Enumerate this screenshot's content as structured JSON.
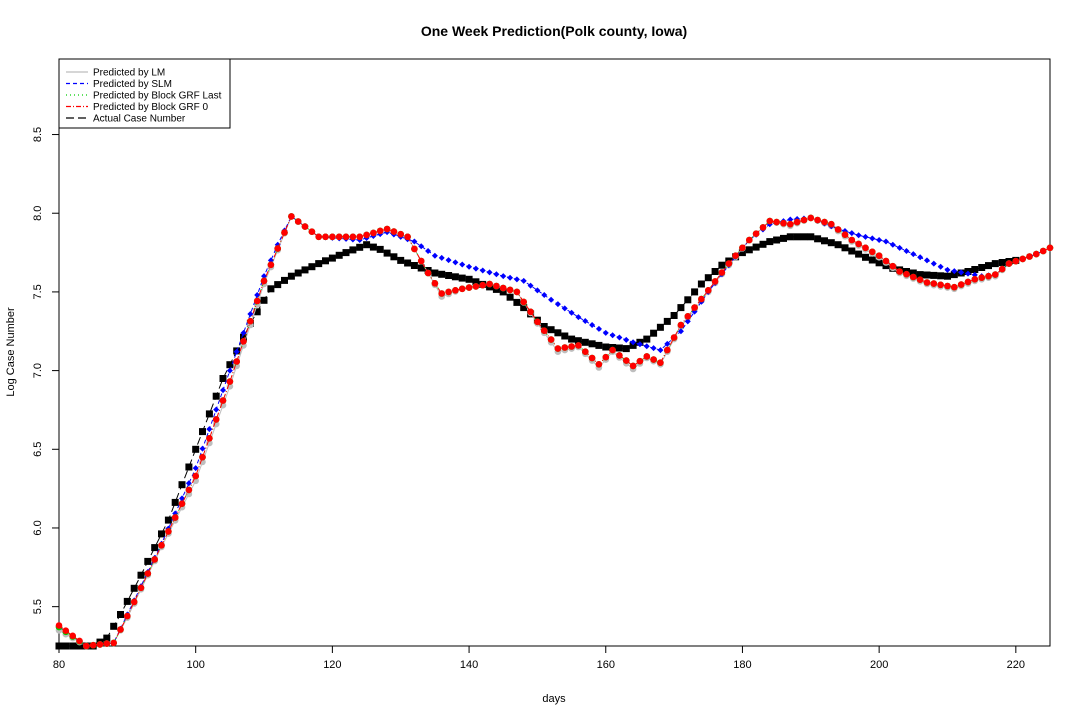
{
  "chart_data": {
    "type": "line",
    "title": "One Week Prediction(Polk county, Iowa)",
    "xlabel": "days",
    "ylabel": "Log Case Number",
    "xlim": [
      80,
      225
    ],
    "ylim": [
      5.25,
      8.98
    ],
    "xticks": [
      80,
      100,
      120,
      140,
      160,
      180,
      200,
      220
    ],
    "yticks": [
      5.5,
      6.0,
      6.5,
      7.0,
      7.5,
      8.0,
      8.5
    ],
    "x_range": [
      80,
      225
    ],
    "legend_position": "top-left",
    "grid": false,
    "series": [
      {
        "name": "Predicted by LM",
        "color": "#bebebe",
        "line": "solid",
        "marker": "circle",
        "keypoints": [
          [
            80,
            5.35
          ],
          [
            84,
            5.25
          ],
          [
            88,
            5.27
          ],
          [
            90,
            5.43
          ],
          [
            95,
            5.88
          ],
          [
            100,
            6.3
          ],
          [
            105,
            6.9
          ],
          [
            110,
            7.55
          ],
          [
            114,
            7.98
          ],
          [
            118,
            7.85
          ],
          [
            124,
            7.85
          ],
          [
            128,
            7.9
          ],
          [
            131,
            7.85
          ],
          [
            134,
            7.62
          ],
          [
            136,
            7.47
          ],
          [
            139,
            7.52
          ],
          [
            143,
            7.55
          ],
          [
            147,
            7.5
          ],
          [
            150,
            7.3
          ],
          [
            153,
            7.12
          ],
          [
            156,
            7.15
          ],
          [
            159,
            7.02
          ],
          [
            161,
            7.12
          ],
          [
            164,
            7.01
          ],
          [
            166,
            7.08
          ],
          [
            168,
            7.04
          ],
          [
            171,
            7.28
          ],
          [
            175,
            7.5
          ],
          [
            178,
            7.67
          ],
          [
            181,
            7.83
          ],
          [
            184,
            7.95
          ],
          [
            187,
            7.92
          ],
          [
            190,
            7.97
          ],
          [
            193,
            7.92
          ],
          [
            196,
            7.82
          ],
          [
            200,
            7.72
          ],
          [
            203,
            7.62
          ],
          [
            207,
            7.55
          ],
          [
            211,
            7.52
          ],
          [
            214,
            7.57
          ],
          [
            217,
            7.6
          ],
          [
            219,
            7.68
          ],
          [
            223,
            7.74
          ],
          [
            225,
            7.78
          ]
        ]
      },
      {
        "name": "Predicted by SLM",
        "color": "#0000ff",
        "line": "dashed",
        "marker": "diamond",
        "keypoints": [
          [
            80,
            5.37
          ],
          [
            84,
            5.25
          ],
          [
            88,
            5.27
          ],
          [
            90,
            5.45
          ],
          [
            95,
            5.9
          ],
          [
            100,
            6.38
          ],
          [
            105,
            7.0
          ],
          [
            110,
            7.6
          ],
          [
            112,
            7.8
          ],
          [
            114,
            7.98
          ],
          [
            118,
            7.85
          ],
          [
            124,
            7.83
          ],
          [
            128,
            7.88
          ],
          [
            132,
            7.82
          ],
          [
            135,
            7.73
          ],
          [
            140,
            7.66
          ],
          [
            145,
            7.6
          ],
          [
            148,
            7.57
          ],
          [
            152,
            7.45
          ],
          [
            156,
            7.34
          ],
          [
            160,
            7.24
          ],
          [
            164,
            7.18
          ],
          [
            168,
            7.13
          ],
          [
            171,
            7.25
          ],
          [
            175,
            7.5
          ],
          [
            178,
            7.67
          ],
          [
            181,
            7.83
          ],
          [
            184,
            7.93
          ],
          [
            187,
            7.96
          ],
          [
            190,
            7.97
          ],
          [
            194,
            7.9
          ],
          [
            197,
            7.86
          ],
          [
            201,
            7.82
          ],
          [
            205,
            7.74
          ],
          [
            210,
            7.64
          ],
          [
            215,
            7.6
          ],
          [
            217,
            7.61
          ],
          [
            219,
            7.68
          ],
          [
            223,
            7.74
          ],
          [
            225,
            7.78
          ]
        ]
      },
      {
        "name": "Predicted by Block GRF Last",
        "color": "#00cd00",
        "line": "dotted",
        "marker": "circle",
        "keypoints": [
          [
            80,
            5.37
          ],
          [
            84,
            5.25
          ],
          [
            88,
            5.27
          ],
          [
            90,
            5.44
          ],
          [
            95,
            5.89
          ],
          [
            100,
            6.33
          ],
          [
            105,
            6.93
          ],
          [
            110,
            7.57
          ],
          [
            114,
            7.98
          ],
          [
            118,
            7.85
          ],
          [
            124,
            7.85
          ],
          [
            128,
            7.9
          ],
          [
            131,
            7.85
          ],
          [
            134,
            7.62
          ],
          [
            136,
            7.49
          ],
          [
            139,
            7.52
          ],
          [
            143,
            7.55
          ],
          [
            147,
            7.5
          ],
          [
            150,
            7.31
          ],
          [
            153,
            7.14
          ],
          [
            156,
            7.16
          ],
          [
            159,
            7.04
          ],
          [
            161,
            7.13
          ],
          [
            164,
            7.03
          ],
          [
            166,
            7.09
          ],
          [
            168,
            7.05
          ],
          [
            171,
            7.29
          ],
          [
            175,
            7.51
          ],
          [
            178,
            7.68
          ],
          [
            181,
            7.83
          ],
          [
            184,
            7.95
          ],
          [
            187,
            7.93
          ],
          [
            190,
            7.97
          ],
          [
            193,
            7.93
          ],
          [
            196,
            7.83
          ],
          [
            200,
            7.73
          ],
          [
            203,
            7.63
          ],
          [
            207,
            7.56
          ],
          [
            211,
            7.53
          ],
          [
            214,
            7.58
          ],
          [
            217,
            7.61
          ],
          [
            219,
            7.68
          ],
          [
            223,
            7.74
          ],
          [
            225,
            7.78
          ]
        ]
      },
      {
        "name": "Predicted by Block GRF 0",
        "color": "#ff0000",
        "line": "dashdot",
        "marker": "circle",
        "keypoints": [
          [
            80,
            5.38
          ],
          [
            84,
            5.25
          ],
          [
            88,
            5.27
          ],
          [
            90,
            5.44
          ],
          [
            95,
            5.89
          ],
          [
            100,
            6.33
          ],
          [
            105,
            6.93
          ],
          [
            110,
            7.57
          ],
          [
            114,
            7.98
          ],
          [
            118,
            7.85
          ],
          [
            124,
            7.85
          ],
          [
            128,
            7.9
          ],
          [
            131,
            7.85
          ],
          [
            134,
            7.62
          ],
          [
            136,
            7.49
          ],
          [
            139,
            7.52
          ],
          [
            143,
            7.55
          ],
          [
            147,
            7.5
          ],
          [
            150,
            7.31
          ],
          [
            153,
            7.14
          ],
          [
            156,
            7.16
          ],
          [
            159,
            7.04
          ],
          [
            161,
            7.13
          ],
          [
            164,
            7.03
          ],
          [
            166,
            7.09
          ],
          [
            168,
            7.05
          ],
          [
            171,
            7.29
          ],
          [
            175,
            7.51
          ],
          [
            178,
            7.68
          ],
          [
            181,
            7.83
          ],
          [
            184,
            7.95
          ],
          [
            187,
            7.93
          ],
          [
            190,
            7.97
          ],
          [
            193,
            7.93
          ],
          [
            196,
            7.83
          ],
          [
            200,
            7.73
          ],
          [
            203,
            7.63
          ],
          [
            207,
            7.56
          ],
          [
            211,
            7.53
          ],
          [
            214,
            7.58
          ],
          [
            217,
            7.61
          ],
          [
            219,
            7.68
          ],
          [
            223,
            7.74
          ],
          [
            225,
            7.78
          ]
        ]
      },
      {
        "name": "Actual Case Number",
        "color": "#000000",
        "line": "longdash",
        "marker": "square",
        "keypoints": [
          [
            80,
            5.25
          ],
          [
            85,
            5.25
          ],
          [
            87,
            5.3
          ],
          [
            89,
            5.45
          ],
          [
            92,
            5.7
          ],
          [
            96,
            6.05
          ],
          [
            100,
            6.5
          ],
          [
            104,
            6.95
          ],
          [
            108,
            7.3
          ],
          [
            111,
            7.52
          ],
          [
            114,
            7.6
          ],
          [
            118,
            7.68
          ],
          [
            122,
            7.75
          ],
          [
            125,
            7.8
          ],
          [
            127,
            7.77
          ],
          [
            130,
            7.7
          ],
          [
            135,
            7.62
          ],
          [
            140,
            7.58
          ],
          [
            145,
            7.5
          ],
          [
            148,
            7.4
          ],
          [
            151,
            7.28
          ],
          [
            155,
            7.2
          ],
          [
            160,
            7.15
          ],
          [
            163,
            7.14
          ],
          [
            166,
            7.2
          ],
          [
            170,
            7.35
          ],
          [
            174,
            7.55
          ],
          [
            177,
            7.67
          ],
          [
            180,
            7.75
          ],
          [
            184,
            7.82
          ],
          [
            187,
            7.85
          ],
          [
            190,
            7.85
          ],
          [
            194,
            7.8
          ],
          [
            198,
            7.72
          ],
          [
            202,
            7.65
          ],
          [
            206,
            7.61
          ],
          [
            210,
            7.6
          ],
          [
            213,
            7.63
          ],
          [
            217,
            7.68
          ],
          [
            220,
            7.7
          ]
        ]
      }
    ]
  }
}
